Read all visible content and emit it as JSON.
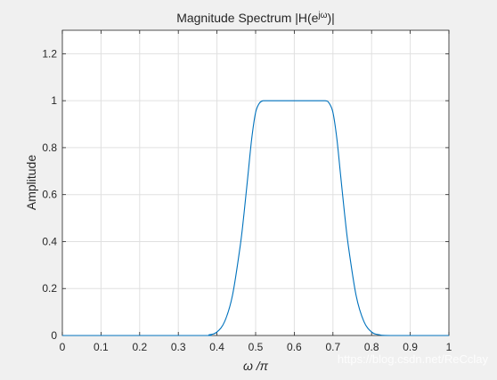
{
  "chart_data": {
    "type": "line",
    "title": "Magnitude Spectrum |H(e^{jω})|",
    "title_parts": {
      "main": "Magnitude Spectrum |H(e",
      "sup": "jω",
      "tail": ")|"
    },
    "xlabel": "ω /π",
    "ylabel": "Amplitude",
    "xlim": [
      0,
      1
    ],
    "ylim": [
      0,
      1.3
    ],
    "xticks": [
      "0",
      "0.1",
      "0.2",
      "0.3",
      "0.4",
      "0.5",
      "0.6",
      "0.7",
      "0.8",
      "0.9",
      "1"
    ],
    "yticks": [
      "0",
      "0.2",
      "0.4",
      "0.6",
      "0.8",
      "1",
      "1.2"
    ],
    "grid": true,
    "series": [
      {
        "color": "#0072bd",
        "x": [
          0,
          0.35,
          0.38,
          0.4,
          0.42,
          0.44,
          0.46,
          0.47,
          0.48,
          0.49,
          0.5,
          0.51,
          0.52,
          0.53,
          0.55,
          0.6,
          0.65,
          0.68,
          0.69,
          0.7,
          0.71,
          0.72,
          0.73,
          0.74,
          0.76,
          0.78,
          0.8,
          0.82,
          0.85,
          1.0
        ],
        "y": [
          0,
          0,
          0.003,
          0.015,
          0.06,
          0.17,
          0.38,
          0.52,
          0.68,
          0.84,
          0.95,
          0.99,
          1.0,
          1.0,
          1.0,
          1.0,
          1.0,
          1.0,
          0.99,
          0.95,
          0.84,
          0.68,
          0.52,
          0.38,
          0.17,
          0.06,
          0.015,
          0.003,
          0,
          0
        ]
      }
    ]
  },
  "watermark": "https://blog.csdn.net/ReCclay",
  "colors": {
    "figure_bg": "#f0f0f0",
    "axes_bg": "#ffffff",
    "grid": "#e0e0e0",
    "axis": "#262626",
    "line": "#0072bd"
  }
}
